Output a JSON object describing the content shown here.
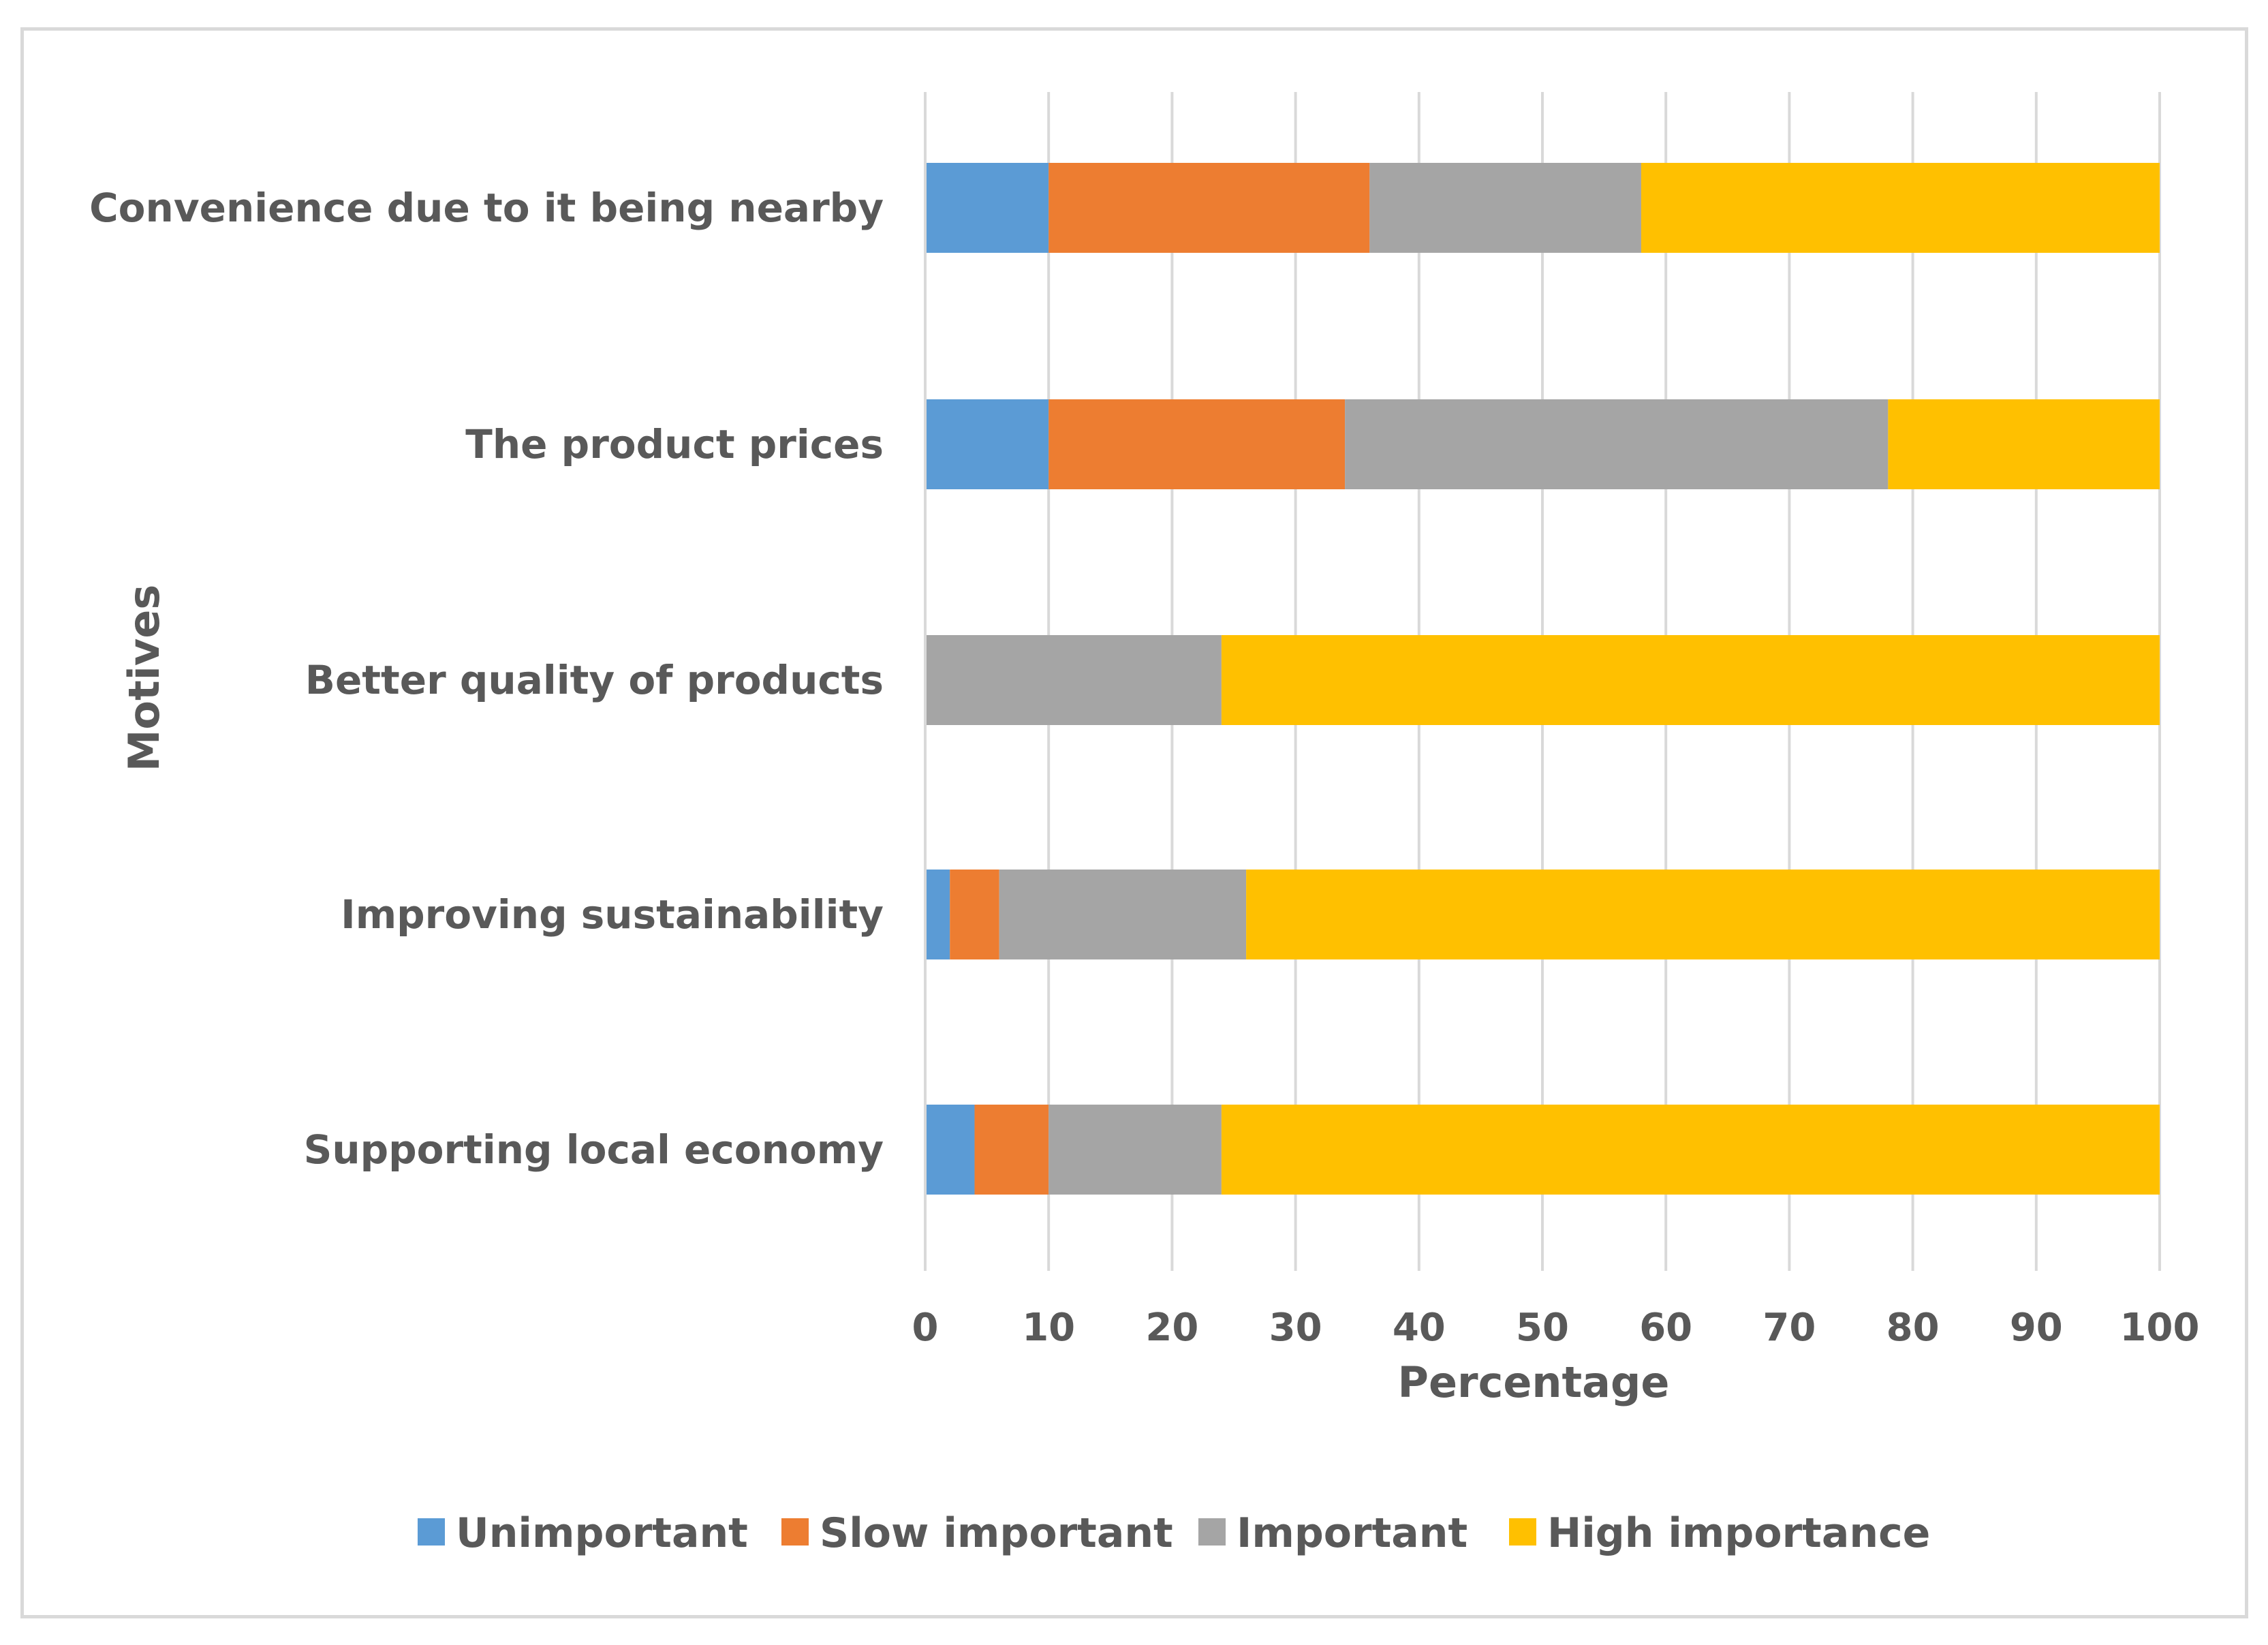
{
  "chart_data": {
    "type": "bar",
    "orientation": "horizontal",
    "stacked": true,
    "title": "",
    "xlabel": "Percentage",
    "ylabel": "Motives",
    "xlim": [
      0,
      100
    ],
    "xticks": [
      "0",
      "10",
      "20",
      "30",
      "40",
      "50",
      "60",
      "70",
      "80",
      "90",
      "100"
    ],
    "grid": "vertical",
    "legend_position": "bottom",
    "categories": [
      "Convenience due to it being nearby",
      "The product prices",
      "Better quality of products",
      "Improving sustainability",
      "Supporting local economy"
    ],
    "series": [
      {
        "name": "Unimportant",
        "color": "#5b9bd5",
        "values": [
          10,
          10,
          0,
          2,
          4
        ]
      },
      {
        "name": "Slow important",
        "color": "#ed7d31",
        "values": [
          26,
          24,
          0,
          4,
          6
        ]
      },
      {
        "name": "Important",
        "color": "#a5a5a5",
        "values": [
          22,
          44,
          24,
          20,
          14
        ]
      },
      {
        "name": "High importance",
        "color": "#ffc000",
        "values": [
          42,
          22,
          76,
          74,
          76
        ]
      }
    ]
  }
}
